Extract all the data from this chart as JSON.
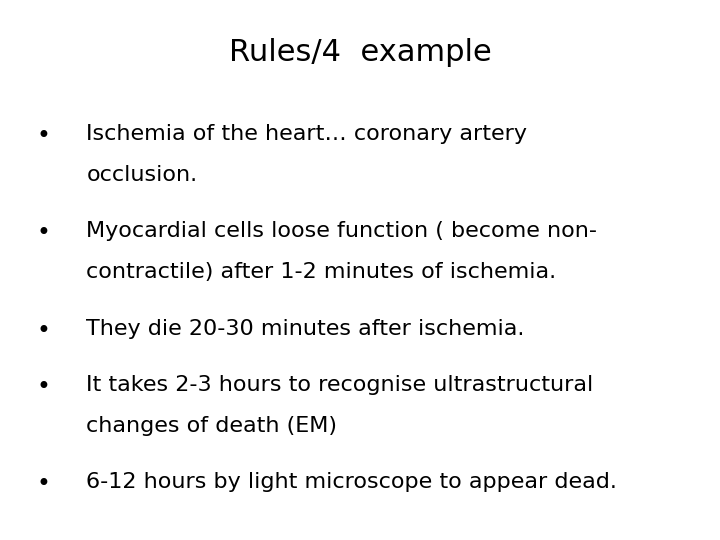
{
  "title": "Rules/4  example",
  "title_fontsize": 22,
  "background_color": "#ffffff",
  "text_color": "#000000",
  "bullet_points": [
    [
      "Ischemia of the heart… coronary artery",
      "occlusion."
    ],
    [
      "Myocardial cells loose function ( become non-",
      "contractile) after 1-2 minutes of ischemia."
    ],
    [
      "They die 20-30 minutes after ischemia."
    ],
    [
      "It takes 2-3 hours to recognise ultrastructural",
      "changes of death (EM)"
    ],
    [
      "6-12 hours by light microscope to appear dead."
    ]
  ],
  "bullet_fontsize": 16,
  "bullet_symbol": "•",
  "figsize": [
    7.2,
    5.4
  ],
  "dpi": 100
}
